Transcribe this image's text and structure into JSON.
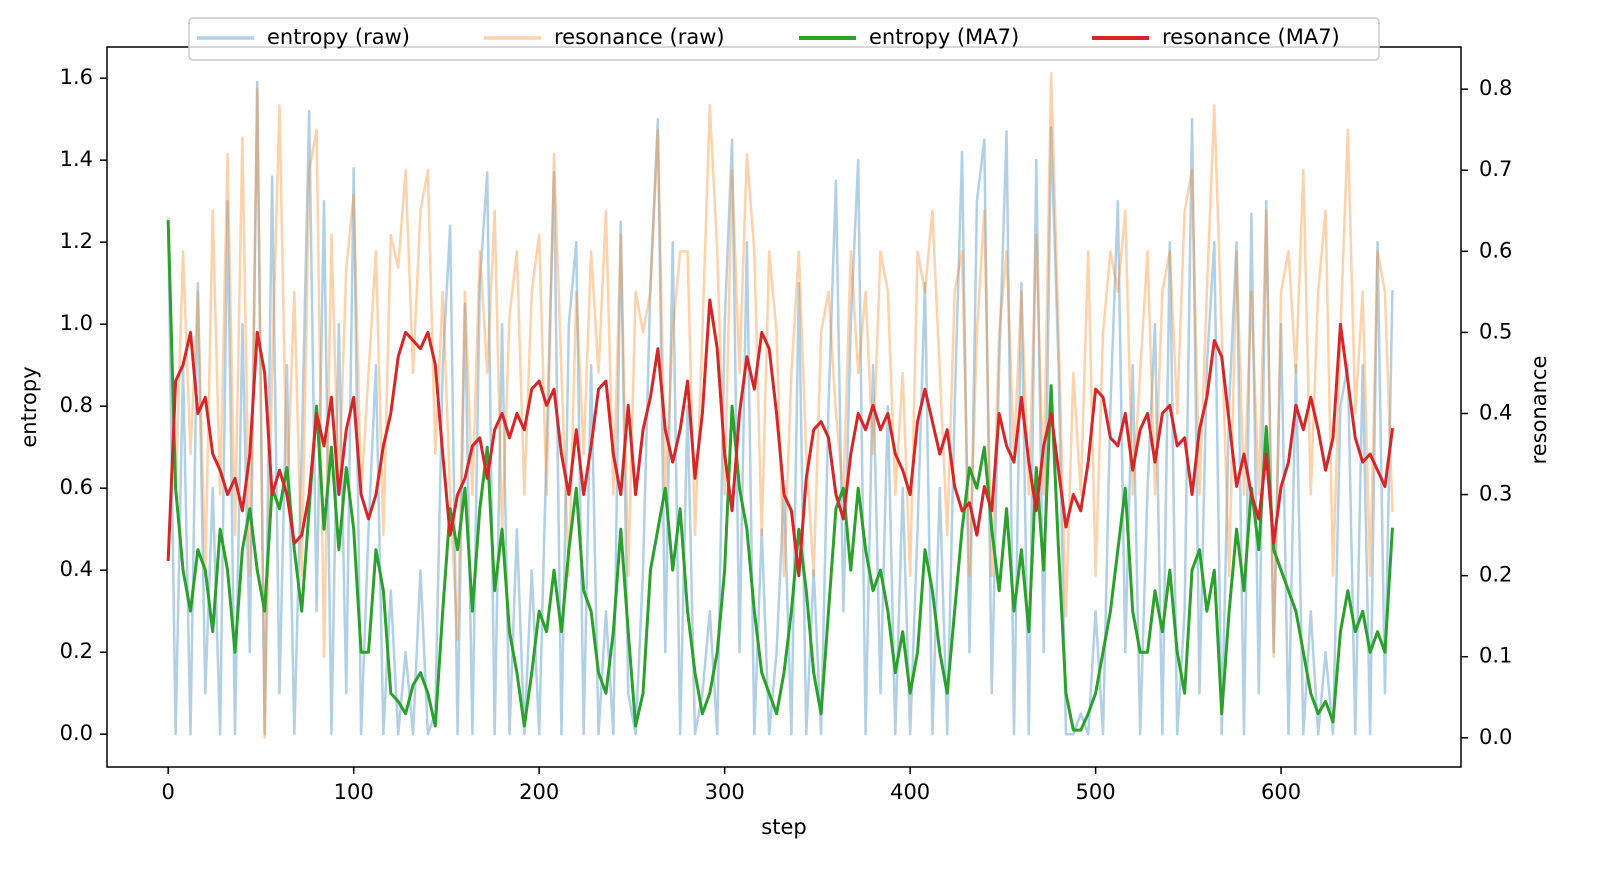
{
  "chart_data": {
    "type": "line",
    "xlabel": "step",
    "ylabel": "entropy",
    "y2label": "resonance",
    "ylabel_color": "#1f77b4",
    "y2label_color": "#ff7f0e",
    "legend": "upper center",
    "xlim": [
      -33,
      697
    ],
    "ylim": [
      -0.08,
      1.676
    ],
    "y2lim": [
      -0.036,
      0.852
    ],
    "xticks": [
      0,
      100,
      200,
      300,
      400,
      500,
      600
    ],
    "yticks": [
      {
        "value": 0,
        "label": "0.0"
      },
      {
        "value": 0.2,
        "label": "0.2"
      },
      {
        "value": 0.4,
        "label": "0.4"
      },
      {
        "value": 0.6,
        "label": "0.6"
      },
      {
        "value": 0.8,
        "label": "0.8"
      },
      {
        "value": 1,
        "label": "1.0"
      },
      {
        "value": 1.2,
        "label": "1.2"
      },
      {
        "value": 1.4,
        "label": "1.4"
      },
      {
        "value": 1.6,
        "label": "1.6"
      }
    ],
    "y2ticks": [
      {
        "value": 0,
        "label": "0.0"
      },
      {
        "value": 0.1,
        "label": "0.1"
      },
      {
        "value": 0.2,
        "label": "0.2"
      },
      {
        "value": 0.3,
        "label": "0.3"
      },
      {
        "value": 0.4,
        "label": "0.4"
      },
      {
        "value": 0.5,
        "label": "0.5"
      },
      {
        "value": 0.6,
        "label": "0.6"
      },
      {
        "value": 0.7,
        "label": "0.7"
      },
      {
        "value": 0.8,
        "label": "0.8"
      }
    ],
    "x": [
      0,
      4,
      8,
      12,
      16,
      20,
      24,
      28,
      32,
      36,
      40,
      44,
      48,
      52,
      56,
      60,
      64,
      68,
      72,
      76,
      80,
      84,
      88,
      92,
      96,
      100,
      104,
      108,
      112,
      116,
      120,
      124,
      128,
      132,
      136,
      140,
      144,
      148,
      152,
      156,
      160,
      164,
      168,
      172,
      176,
      180,
      184,
      188,
      192,
      196,
      200,
      204,
      208,
      212,
      216,
      220,
      224,
      228,
      232,
      236,
      240,
      244,
      248,
      252,
      256,
      260,
      264,
      268,
      272,
      276,
      280,
      284,
      288,
      292,
      296,
      300,
      304,
      308,
      312,
      316,
      320,
      324,
      328,
      332,
      336,
      340,
      344,
      348,
      352,
      356,
      360,
      364,
      368,
      372,
      376,
      380,
      384,
      388,
      392,
      396,
      400,
      404,
      408,
      412,
      416,
      420,
      424,
      428,
      432,
      436,
      440,
      444,
      448,
      452,
      456,
      460,
      464,
      468,
      472,
      476,
      480,
      484,
      488,
      492,
      496,
      500,
      504,
      508,
      512,
      516,
      520,
      524,
      528,
      532,
      536,
      540,
      544,
      548,
      552,
      556,
      560,
      564,
      568,
      572,
      576,
      580,
      584,
      588,
      592,
      596,
      600,
      604,
      608,
      612,
      616,
      620,
      624,
      628,
      632,
      636,
      640,
      644,
      648,
      652,
      656,
      660
    ],
    "series": [
      {
        "name": "entropy (raw)",
        "color": "#1f77b4",
        "alpha": 0.35,
        "linewidth": 2.5,
        "axis": "y",
        "values": [
          1.25,
          0,
          0.9,
          0,
          1.1,
          0.1,
          0.6,
          0,
          1.3,
          0,
          1.0,
          0.2,
          1.59,
          0,
          1.36,
          0.1,
          0.9,
          0,
          0.7,
          1.52,
          0.3,
          1.3,
          0,
          1.0,
          0.1,
          1.38,
          0,
          0.5,
          0.9,
          0,
          0.35,
          0,
          0.2,
          0,
          0.4,
          0,
          0.05,
          0.9,
          1.24,
          0,
          1.05,
          0,
          1.1,
          1.37,
          0,
          1.0,
          0,
          0.5,
          0,
          0.4,
          0,
          0.7,
          1.37,
          0,
          1.0,
          1.2,
          0,
          0.9,
          0,
          0.3,
          0,
          1.25,
          0.1,
          0,
          0.4,
          1.1,
          1.5,
          0.2,
          1.2,
          0,
          0.8,
          0,
          0.1,
          0.3,
          0,
          1.0,
          1.45,
          0.2,
          1.2,
          0,
          0.5,
          0,
          0.2,
          0.6,
          0,
          1.1,
          0,
          0.4,
          0,
          0.8,
          1.35,
          0.3,
          1.0,
          1.4,
          0,
          0.9,
          0.1,
          0.8,
          0,
          0.6,
          0,
          0.5,
          1.1,
          0,
          0.6,
          0,
          0.8,
          1.42,
          0.2,
          1.3,
          1.45,
          0.1,
          0.9,
          1.47,
          0,
          1.1,
          0,
          1.4,
          0.2,
          1.48,
          0.9,
          0,
          0,
          0.05,
          0,
          0.3,
          0,
          0.8,
          1.3,
          0.2,
          0.9,
          0,
          0.6,
          1.0,
          0,
          1.2,
          0,
          0.3,
          1.5,
          0.1,
          0.9,
          1.2,
          0,
          0.8,
          1.2,
          0,
          1.27,
          0.1,
          1.3,
          0.2,
          1.0,
          0,
          0.9,
          0,
          0.3,
          0,
          0.2,
          0,
          0.8,
          0.9,
          0,
          0.9,
          0,
          1.2,
          0.1,
          1.08
        ]
      },
      {
        "name": "resonance (raw)",
        "color": "#ff7f0e",
        "alpha": 0.35,
        "linewidth": 2.5,
        "axis": "y2",
        "values": [
          0.64,
          0.3,
          0.6,
          0.35,
          0.55,
          0.2,
          0.65,
          0.3,
          0.72,
          0.25,
          0.74,
          0.2,
          0.8,
          0,
          0.45,
          0.78,
          0.3,
          0.55,
          0.2,
          0.7,
          0.75,
          0.1,
          0.62,
          0.3,
          0.58,
          0.67,
          0.3,
          0.45,
          0.6,
          0.25,
          0.62,
          0.58,
          0.7,
          0.45,
          0.65,
          0.7,
          0.35,
          0.55,
          0.3,
          0.12,
          0.55,
          0.3,
          0.6,
          0.45,
          0.65,
          0.25,
          0.52,
          0.6,
          0.3,
          0.55,
          0.62,
          0.3,
          0.72,
          0.45,
          0.2,
          0.55,
          0.35,
          0.6,
          0.45,
          0.65,
          0.3,
          0.62,
          0.2,
          0.55,
          0.5,
          0.55,
          0.75,
          0.3,
          0.5,
          0.6,
          0.6,
          0.25,
          0.5,
          0.78,
          0.6,
          0.3,
          0.7,
          0.45,
          0.72,
          0.6,
          0.25,
          0.6,
          0.5,
          0.2,
          0.45,
          0.6,
          0.35,
          0.2,
          0.5,
          0.55,
          0.4,
          0.3,
          0.6,
          0.45,
          0.55,
          0.35,
          0.6,
          0.55,
          0.3,
          0.45,
          0.2,
          0.6,
          0.55,
          0.65,
          0.45,
          0.25,
          0.55,
          0.6,
          0.2,
          0.5,
          0.65,
          0.2,
          0.5,
          0.6,
          0.35,
          0.55,
          0.3,
          0.62,
          0.3,
          0.82,
          0.5,
          0.15,
          0.45,
          0.3,
          0.6,
          0.2,
          0.5,
          0.6,
          0.55,
          0.65,
          0.3,
          0.45,
          0.6,
          0.3,
          0.55,
          0.6,
          0.4,
          0.65,
          0.7,
          0.3,
          0.55,
          0.78,
          0.5,
          0.2,
          0.6,
          0.3,
          0.55,
          0.3,
          0.65,
          0.1,
          0.55,
          0.6,
          0.45,
          0.7,
          0.3,
          0.55,
          0.65,
          0.2,
          0.5,
          0.75,
          0.4,
          0.55,
          0.2,
          0.6,
          0.55,
          0.28
        ]
      },
      {
        "name": "entropy (MA7)",
        "color": "#2ca02c",
        "alpha": 1,
        "linewidth": 3,
        "axis": "y",
        "values": [
          1.25,
          0.6,
          0.4,
          0.3,
          0.45,
          0.4,
          0.25,
          0.5,
          0.4,
          0.2,
          0.45,
          0.55,
          0.4,
          0.3,
          0.6,
          0.55,
          0.65,
          0.45,
          0.3,
          0.55,
          0.8,
          0.5,
          0.7,
          0.45,
          0.65,
          0.5,
          0.2,
          0.2,
          0.45,
          0.35,
          0.1,
          0.08,
          0.05,
          0.12,
          0.15,
          0.1,
          0.02,
          0.3,
          0.55,
          0.45,
          0.6,
          0.3,
          0.55,
          0.7,
          0.35,
          0.5,
          0.25,
          0.15,
          0.02,
          0.15,
          0.3,
          0.25,
          0.4,
          0.25,
          0.45,
          0.6,
          0.35,
          0.3,
          0.15,
          0.1,
          0.25,
          0.5,
          0.25,
          0.02,
          0.1,
          0.4,
          0.5,
          0.6,
          0.4,
          0.55,
          0.3,
          0.15,
          0.05,
          0.1,
          0.2,
          0.4,
          0.8,
          0.6,
          0.5,
          0.3,
          0.15,
          0.1,
          0.05,
          0.15,
          0.3,
          0.5,
          0.35,
          0.15,
          0.05,
          0.3,
          0.55,
          0.6,
          0.4,
          0.6,
          0.45,
          0.35,
          0.4,
          0.3,
          0.15,
          0.25,
          0.1,
          0.2,
          0.45,
          0.35,
          0.2,
          0.1,
          0.3,
          0.5,
          0.65,
          0.6,
          0.7,
          0.5,
          0.35,
          0.55,
          0.3,
          0.45,
          0.25,
          0.65,
          0.4,
          0.85,
          0.45,
          0.1,
          0.01,
          0.01,
          0.05,
          0.1,
          0.2,
          0.3,
          0.45,
          0.6,
          0.3,
          0.2,
          0.2,
          0.35,
          0.25,
          0.4,
          0.2,
          0.1,
          0.4,
          0.45,
          0.3,
          0.4,
          0.05,
          0.3,
          0.5,
          0.35,
          0.6,
          0.45,
          0.75,
          0.45,
          0.4,
          0.35,
          0.3,
          0.2,
          0.1,
          0.05,
          0.08,
          0.03,
          0.25,
          0.35,
          0.25,
          0.3,
          0.2,
          0.25,
          0.2,
          0.5
        ]
      },
      {
        "name": "resonance (MA7)",
        "color": "#d62728",
        "alpha": 1,
        "linewidth": 3,
        "axis": "y2",
        "values": [
          0.22,
          0.44,
          0.46,
          0.5,
          0.4,
          0.42,
          0.35,
          0.33,
          0.3,
          0.32,
          0.28,
          0.35,
          0.5,
          0.45,
          0.3,
          0.33,
          0.3,
          0.24,
          0.25,
          0.3,
          0.4,
          0.36,
          0.42,
          0.3,
          0.38,
          0.42,
          0.3,
          0.27,
          0.3,
          0.36,
          0.4,
          0.47,
          0.5,
          0.49,
          0.48,
          0.5,
          0.46,
          0.35,
          0.25,
          0.3,
          0.32,
          0.36,
          0.37,
          0.32,
          0.38,
          0.4,
          0.37,
          0.4,
          0.38,
          0.43,
          0.44,
          0.41,
          0.43,
          0.35,
          0.3,
          0.38,
          0.3,
          0.36,
          0.43,
          0.44,
          0.35,
          0.3,
          0.41,
          0.3,
          0.38,
          0.42,
          0.48,
          0.38,
          0.34,
          0.38,
          0.44,
          0.32,
          0.4,
          0.54,
          0.48,
          0.35,
          0.28,
          0.4,
          0.47,
          0.43,
          0.5,
          0.48,
          0.4,
          0.3,
          0.28,
          0.2,
          0.32,
          0.38,
          0.39,
          0.37,
          0.3,
          0.27,
          0.35,
          0.4,
          0.38,
          0.41,
          0.38,
          0.4,
          0.35,
          0.33,
          0.3,
          0.39,
          0.43,
          0.39,
          0.35,
          0.38,
          0.31,
          0.28,
          0.29,
          0.25,
          0.31,
          0.28,
          0.4,
          0.36,
          0.34,
          0.42,
          0.34,
          0.28,
          0.36,
          0.4,
          0.33,
          0.26,
          0.3,
          0.28,
          0.34,
          0.43,
          0.42,
          0.37,
          0.36,
          0.4,
          0.33,
          0.38,
          0.4,
          0.34,
          0.4,
          0.41,
          0.36,
          0.37,
          0.3,
          0.38,
          0.42,
          0.49,
          0.47,
          0.39,
          0.31,
          0.35,
          0.3,
          0.27,
          0.35,
          0.24,
          0.31,
          0.34,
          0.41,
          0.38,
          0.42,
          0.38,
          0.33,
          0.37,
          0.51,
          0.44,
          0.37,
          0.34,
          0.35,
          0.33,
          0.31,
          0.38
        ]
      }
    ]
  }
}
